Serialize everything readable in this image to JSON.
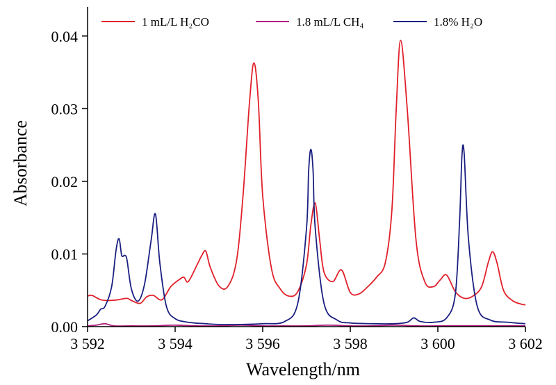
{
  "chart_data": {
    "type": "line",
    "title": "",
    "xlabel": "Wavelength/nm",
    "ylabel": "Absorbance",
    "xlim": [
      3592,
      3602
    ],
    "ylim": [
      0,
      0.044
    ],
    "x_ticks": [
      3592,
      3594,
      3596,
      3598,
      3600,
      3602
    ],
    "x_tick_labels": [
      "3 592",
      "3 594",
      "3 596",
      "3 598",
      "3 600",
      "3 602"
    ],
    "y_ticks": [
      0,
      0.01,
      0.02,
      0.03,
      0.04
    ],
    "y_tick_labels": [
      "0.00",
      "0.01",
      "0.02",
      "0.03",
      "0.04"
    ],
    "grid": false,
    "legend_position": "top",
    "series": [
      {
        "name": "1 mL/L H₂CO",
        "color": "#e0202a",
        "x": [
          3592.0,
          3592.1,
          3592.3,
          3592.5,
          3592.7,
          3592.9,
          3593.0,
          3593.2,
          3593.35,
          3593.5,
          3593.7,
          3593.9,
          3594.1,
          3594.2,
          3594.3,
          3594.5,
          3594.6,
          3594.7,
          3594.8,
          3595.0,
          3595.2,
          3595.4,
          3595.55,
          3595.7,
          3595.8,
          3595.9,
          3596.0,
          3596.2,
          3596.4,
          3596.6,
          3596.8,
          3597.0,
          3597.1,
          3597.2,
          3597.3,
          3597.4,
          3597.6,
          3597.8,
          3598.0,
          3598.2,
          3598.4,
          3598.6,
          3598.8,
          3598.95,
          3599.05,
          3599.15,
          3599.3,
          3599.5,
          3599.7,
          3599.9,
          3600.05,
          3600.2,
          3600.4,
          3600.6,
          3600.8,
          3601.0,
          3601.15,
          3601.25,
          3601.35,
          3601.5,
          3601.7,
          3601.9,
          3602.0
        ],
        "y": [
          0.0042,
          0.0043,
          0.0037,
          0.0036,
          0.0037,
          0.0039,
          0.0036,
          0.0032,
          0.0041,
          0.0043,
          0.0037,
          0.0055,
          0.0065,
          0.0068,
          0.0062,
          0.0085,
          0.0097,
          0.0104,
          0.0082,
          0.0056,
          0.0055,
          0.009,
          0.018,
          0.031,
          0.0363,
          0.031,
          0.018,
          0.008,
          0.0052,
          0.0042,
          0.0048,
          0.0085,
          0.014,
          0.017,
          0.012,
          0.0075,
          0.0062,
          0.0078,
          0.0047,
          0.0045,
          0.0055,
          0.0068,
          0.0088,
          0.016,
          0.03,
          0.0394,
          0.03,
          0.012,
          0.0062,
          0.0055,
          0.0064,
          0.0071,
          0.0048,
          0.0039,
          0.0042,
          0.0055,
          0.0088,
          0.0103,
          0.0088,
          0.005,
          0.0036,
          0.0031,
          0.003
        ]
      },
      {
        "name": "1.8  mL/L CH₄",
        "color": "#b0207a",
        "x": [
          3592.0,
          3592.2,
          3592.4,
          3592.6,
          3593.0,
          3593.5,
          3594.0,
          3594.5,
          3595.0,
          3595.5,
          3596.0,
          3596.5,
          3597.0,
          3597.5,
          3598.0,
          3598.5,
          3599.0,
          3599.5,
          3600.0,
          3600.5,
          3601.0,
          3601.5,
          3602.0
        ],
        "y": [
          0.0001,
          0.0002,
          0.0004,
          0.0001,
          0.0001,
          0.0001,
          0.0002,
          0.0001,
          0.0001,
          0.0002,
          0.0001,
          0.0001,
          0.0001,
          0.0002,
          0.0001,
          0.0001,
          0.0002,
          0.0001,
          0.0001,
          0.0001,
          0.0001,
          0.0001,
          0.0001
        ]
      },
      {
        "name": "1.8% H₂O",
        "color": "#1a1f80",
        "x": [
          3592.0,
          3592.2,
          3592.3,
          3592.4,
          3592.55,
          3592.65,
          3592.72,
          3592.78,
          3592.85,
          3592.9,
          3593.0,
          3593.15,
          3593.3,
          3593.45,
          3593.55,
          3593.65,
          3593.8,
          3594.0,
          3594.3,
          3594.7,
          3595.0,
          3595.5,
          3596.0,
          3596.5,
          3596.8,
          3597.0,
          3597.05,
          3597.1,
          3597.15,
          3597.2,
          3597.4,
          3597.7,
          3598.0,
          3598.5,
          3599.0,
          3599.3,
          3599.45,
          3599.6,
          3599.9,
          3600.2,
          3600.4,
          3600.5,
          3600.55,
          3600.6,
          3600.7,
          3600.9,
          3601.2,
          3601.6,
          3602.0
        ],
        "y": [
          0.0008,
          0.0016,
          0.0024,
          0.0028,
          0.0055,
          0.0105,
          0.0121,
          0.0098,
          0.0098,
          0.0092,
          0.0052,
          0.0035,
          0.0058,
          0.0118,
          0.0155,
          0.0088,
          0.0028,
          0.0011,
          0.0006,
          0.0004,
          0.0003,
          0.0003,
          0.0004,
          0.0007,
          0.0032,
          0.0135,
          0.0215,
          0.0244,
          0.0215,
          0.0135,
          0.0032,
          0.0009,
          0.0005,
          0.0004,
          0.0004,
          0.0006,
          0.0012,
          0.0007,
          0.0006,
          0.0012,
          0.0045,
          0.015,
          0.0235,
          0.0239,
          0.012,
          0.0028,
          0.0009,
          0.0006,
          0.0004
        ]
      }
    ]
  }
}
